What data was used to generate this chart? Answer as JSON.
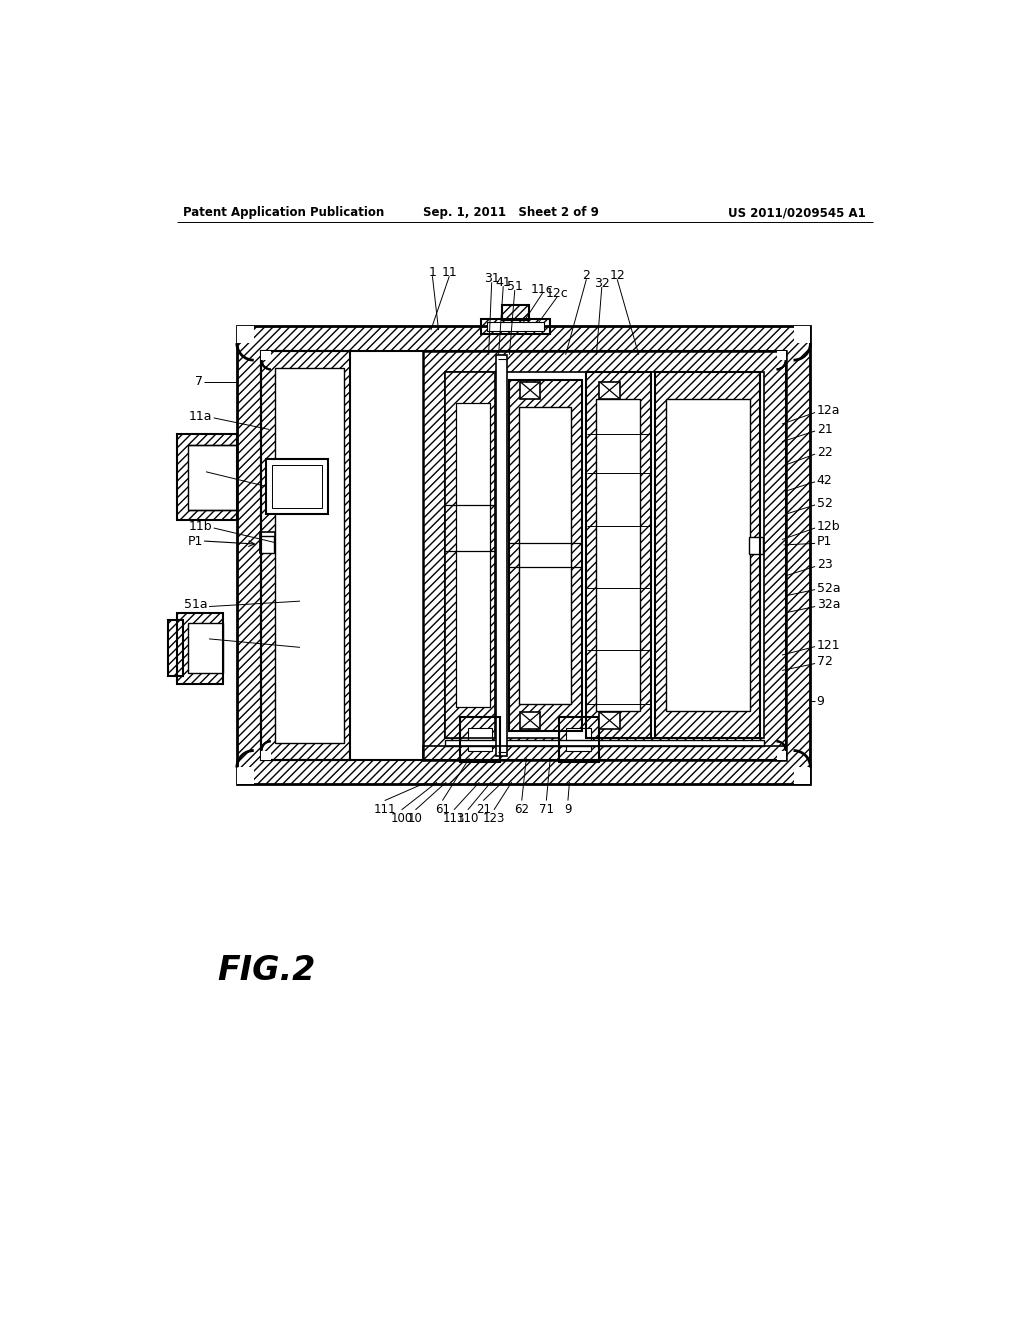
{
  "header_left": "Patent Application Publication",
  "header_mid": "Sep. 1, 2011   Sheet 2 of 9",
  "header_right": "US 2011/0209545 A1",
  "fig_label": "FIG.2",
  "bg": "#ffffff"
}
